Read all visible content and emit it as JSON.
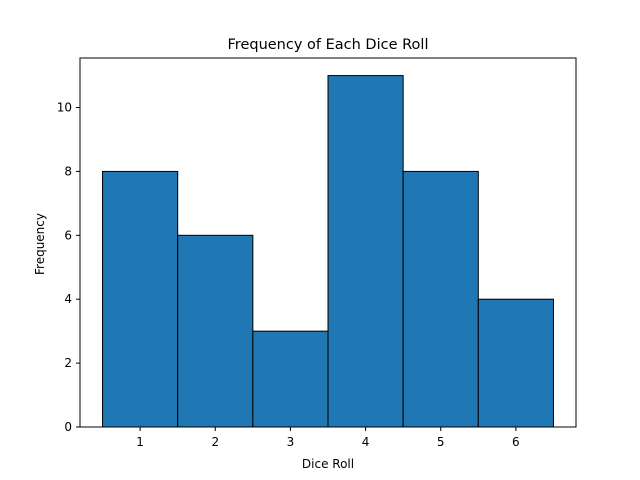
{
  "chart_data": {
    "type": "bar",
    "title": "Frequency of Each Dice Roll",
    "xlabel": "Dice Roll",
    "ylabel": "Frequency",
    "categories": [
      "1",
      "2",
      "3",
      "4",
      "5",
      "6"
    ],
    "values": [
      8,
      6,
      3,
      11,
      8,
      4
    ],
    "xlim": [
      0.2,
      6.8
    ],
    "ylim": [
      0,
      11.55
    ],
    "yticks": [
      0,
      2,
      4,
      6,
      8,
      10
    ],
    "xticks": [
      1,
      2,
      3,
      4,
      5,
      6
    ],
    "bar_color": "#1f77b4",
    "edge_color": "#000000",
    "grid": false,
    "legend": "none"
  }
}
